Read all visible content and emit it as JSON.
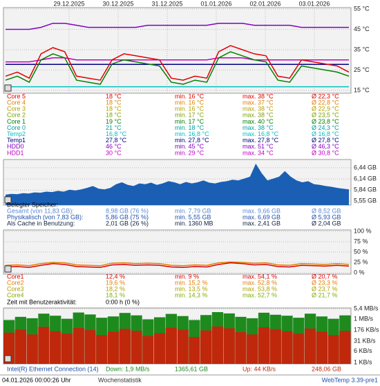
{
  "chart_data": [
    {
      "type": "line",
      "xtick_labels": [
        "29.12.2025",
        "30.12.2025",
        "31.12.2025",
        "01.01.2026",
        "02.01.2026",
        "03.01.2026"
      ],
      "ylim": [
        13.6,
        55.7
      ],
      "yticks": [
        {
          "value": 55,
          "label": "55 °C"
        },
        {
          "value": 45,
          "label": "45 °C"
        },
        {
          "value": 35,
          "label": "35 °C"
        },
        {
          "value": 25,
          "label": "25 °C"
        },
        {
          "value": 15,
          "label": "15 °C"
        }
      ],
      "series": [
        {
          "name": "HDD0",
          "color": "#8000c0",
          "values": [
            45,
            45,
            45,
            46,
            48,
            48,
            47,
            46,
            46,
            46,
            46,
            46,
            47,
            47,
            47,
            47,
            47,
            47,
            48,
            48,
            48,
            47,
            47,
            47,
            47,
            46,
            46,
            46,
            46,
            46
          ]
        },
        {
          "name": "HDD1",
          "color": "#c000c0",
          "values": [
            29,
            29,
            29,
            30,
            31,
            31,
            30,
            30,
            30,
            30,
            30,
            30,
            30,
            30,
            30,
            30,
            30,
            30,
            31,
            31,
            31,
            30,
            30,
            30,
            30,
            30,
            30,
            30,
            30,
            30
          ]
        },
        {
          "name": "Temp1",
          "color": "#000080",
          "values": [
            27.8,
            27.8,
            27.8,
            27.8,
            27.8,
            27.8,
            27.8,
            27.8,
            27.8,
            27.8,
            27.8,
            27.8,
            27.8,
            27.8,
            27.8,
            27.8,
            27.8,
            27.8,
            27.8,
            27.8,
            27.8,
            27.8,
            27.8,
            27.8,
            27.8,
            27.8,
            27.8,
            27.8,
            27.8,
            27.8
          ]
        },
        {
          "name": "Temp2",
          "color": "#00c0c0",
          "values": [
            16.8,
            16.8,
            16.8,
            16.8,
            16.8,
            16.8,
            16.8,
            16.8,
            16.8,
            16.8,
            16.8,
            16.8,
            16.8,
            16.8,
            16.8,
            16.8,
            16.8,
            16.8,
            16.8,
            16.8,
            16.8,
            16.8,
            16.8,
            16.8,
            16.8,
            16.8,
            16.8,
            16.8,
            16.8,
            16.8
          ]
        },
        {
          "name": "Core 1",
          "color": "#008000",
          "values": [
            20,
            22,
            19,
            30,
            33,
            31,
            20,
            19,
            18,
            28,
            30,
            29,
            28,
            27,
            19,
            18,
            20,
            19,
            31,
            34,
            32,
            30,
            29,
            20,
            19,
            27,
            26,
            25,
            24,
            22
          ]
        },
        {
          "name": "Core 5",
          "color": "#e00000",
          "values": [
            22,
            24,
            21,
            33,
            36,
            34,
            22,
            21,
            20,
            30,
            33,
            32,
            31,
            30,
            21,
            20,
            22,
            21,
            34,
            37,
            35,
            33,
            32,
            22,
            21,
            30,
            29,
            28,
            27,
            24
          ]
        }
      ]
    },
    {
      "type": "area",
      "ylim": [
        5.44,
        6.66
      ],
      "yticks": [
        {
          "value": 6.44,
          "label": "6,44 GB"
        },
        {
          "value": 6.14,
          "label": "6,14 GB"
        },
        {
          "value": 5.84,
          "label": "5,84 GB"
        },
        {
          "value": 5.55,
          "label": "5,55 GB"
        }
      ],
      "color": "#1a5fb4",
      "values": [
        5.72,
        5.74,
        5.73,
        5.76,
        5.75,
        5.78,
        5.77,
        5.8,
        5.79,
        5.82,
        5.8,
        5.85,
        5.83,
        5.86,
        5.9,
        5.95,
        5.88,
        5.86,
        5.9,
        6.0,
        6.05,
        5.98,
        5.95,
        6.02,
        6.0,
        6.04,
        5.98,
        6.02,
        6.08,
        6.05,
        6.0,
        6.06,
        6.02,
        6.05,
        6.1,
        6.04,
        6.02,
        6.06,
        6.08,
        6.12,
        6.1,
        6.15,
        6.2,
        6.55,
        6.3,
        6.1,
        6.15,
        6.2,
        6.35,
        6.2,
        6.1,
        6.05,
        6.08,
        6.0,
        5.98,
        5.95,
        5.93,
        5.9,
        5.88,
        5.86
      ]
    },
    {
      "type": "line",
      "ylim": [
        -3.3,
        103.3
      ],
      "yticks": [
        {
          "value": 100,
          "label": "100 %"
        },
        {
          "value": 75,
          "label": "75 %"
        },
        {
          "value": 50,
          "label": "50 %"
        },
        {
          "value": 25,
          "label": "25 %"
        },
        {
          "value": 0,
          "label": "0 %"
        }
      ],
      "series": [
        {
          "name": "Core2",
          "color": "#e08000",
          "values": [
            18,
            19,
            17,
            22,
            25,
            24,
            19,
            18,
            17,
            23,
            24,
            22,
            23,
            22,
            18,
            17,
            19,
            18,
            24,
            26,
            25,
            23,
            24,
            19,
            18,
            22,
            21,
            20,
            22,
            20
          ]
        },
        {
          "name": "Core1",
          "color": "#e00000",
          "values": [
            14,
            15,
            13,
            18,
            22,
            20,
            15,
            14,
            13,
            19,
            20,
            18,
            19,
            18,
            14,
            13,
            15,
            14,
            20,
            24,
            22,
            19,
            20,
            15,
            14,
            18,
            17,
            16,
            18,
            16
          ]
        }
      ]
    },
    {
      "type": "bar",
      "log": true,
      "ylim": [
        0.8,
        6200
      ],
      "yticks": [
        {
          "value": 5530,
          "label": "5,4 MB/s"
        },
        {
          "value": 1024,
          "label": "1 MB/s"
        },
        {
          "value": 176,
          "label": "176 KB/s"
        },
        {
          "value": 31,
          "label": "31 KB/s"
        },
        {
          "value": 6,
          "label": "6 KB/s"
        },
        {
          "value": 1,
          "label": "1 KB/s"
        }
      ],
      "series": [
        {
          "name": "Down",
          "color": "#1e8a1e",
          "values": [
            900,
            1500,
            1200,
            2500,
            1800,
            1100,
            3000,
            2200,
            1300,
            1600,
            2800,
            1900,
            1000,
            1400,
            2400,
            1700,
            900,
            2000,
            3200,
            2600,
            1500,
            1200,
            2900,
            2100,
            1800,
            1300,
            2500,
            1600,
            1100,
            1900
          ]
        },
        {
          "name": "Up",
          "color": "#c0280c",
          "values": [
            120,
            200,
            90,
            300,
            150,
            100,
            250,
            180,
            80,
            140,
            220,
            160,
            70,
            110,
            260,
            190,
            60,
            170,
            320,
            240,
            130,
            90,
            280,
            210,
            150,
            100,
            230,
            140,
            80,
            160
          ]
        }
      ]
    }
  ],
  "temps": {
    "colors": [
      "#e00000",
      "#e08000",
      "#b0a000",
      "#80a000",
      "#008000",
      "#00a0a0",
      "#00c0c0",
      "#000080",
      "#8000c0",
      "#c000c0"
    ],
    "rows": [
      [
        "Core 5",
        "18 °C",
        "min. 16 °C",
        "max. 38 °C",
        "Ø 22,3 °C"
      ],
      [
        "Core 4",
        "18 °C",
        "min. 16 °C",
        "max. 37 °C",
        "Ø 22,8 °C"
      ],
      [
        "Core 3",
        "18 °C",
        "min. 16 °C",
        "max. 38 °C",
        "Ø 22,9 °C"
      ],
      [
        "Core 2",
        "18 °C",
        "min. 17 °C",
        "max. 38 °C",
        "Ø 23,5 °C"
      ],
      [
        "Core 1",
        "19 °C",
        "min. 17 °C",
        "max. 40 °C",
        "Ø 23,8 °C"
      ],
      [
        "Core 0",
        "21 °C",
        "min. 18 °C",
        "max. 38 °C",
        "Ø 24,3 °C"
      ],
      [
        "Temp2",
        "16,8 °C",
        "min. 16,8 °C",
        "max. 16,8 °C",
        "Ø 16,8 °C"
      ],
      [
        "Temp1",
        "27,8 °C",
        "min. 27,8 °C",
        "max. 27,8 °C",
        "Ø 27,8 °C"
      ],
      [
        "HDD0",
        "46 °C",
        "min. 45 °C",
        "max. 51 °C",
        "Ø 46,3 °C"
      ],
      [
        "HDD1",
        "30 °C",
        "min. 29 °C",
        "max. 34 °C",
        "Ø 30,8 °C"
      ]
    ]
  },
  "memory": {
    "heading": "Belegter Speicher:",
    "colors": [
      "#5a8ad8",
      "#1f4fa8",
      "#102040"
    ],
    "rows": [
      [
        "Gesamt (von 11,83 GB):",
        "8,98 GB (76 %)",
        "min. 7,79 GB",
        "max. 9,66 GB",
        "Ø 8,52 GB"
      ],
      [
        "Physikalisch (von 7,83 GB):",
        "5,86 GB (75 %)",
        "min. 5,55 GB",
        "max. 6,69 GB",
        "Ø 5,93 GB"
      ],
      [
        "Als Cache in Benutzung:",
        "2,01 GB (26 %)",
        "min. 1360 MB",
        "max. 2,41 GB",
        "Ø 2,04 GB"
      ]
    ]
  },
  "load": {
    "colors": [
      "#e00000",
      "#e08000",
      "#b0a000",
      "#80b000"
    ],
    "rows": [
      [
        "Core1",
        "12,4 %",
        "min. 9 %",
        "max. 54,1 %",
        "Ø 20,7 %"
      ],
      [
        "Core2",
        "19,6 %",
        "min. 15,2 %",
        "max. 52,8 %",
        "Ø 23,3 %"
      ],
      [
        "Core3",
        "18,2 %",
        "min. 13,5 %",
        "max. 53,8 %",
        "Ø 23,7 %"
      ],
      [
        "Core4",
        "18,1 %",
        "min. 14,3 %",
        "max. 52,7 %",
        "Ø 21,7 %"
      ]
    ],
    "activity": [
      "Zeit mit Benutzeraktivität:",
      "0:00 h (0 %)"
    ]
  },
  "network": {
    "row": [
      "Intel(R) Ethernet Connection (14)",
      "Down: 1,9 MB/s",
      "1365,61 GB",
      "Up: 44 KB/s",
      "248,06 GB"
    ]
  },
  "footer": {
    "timestamp": "04.01.2026 00:00:26 Uhr",
    "link": "Wochenstatistik",
    "version": "WebTemp 3.39-pre1"
  }
}
